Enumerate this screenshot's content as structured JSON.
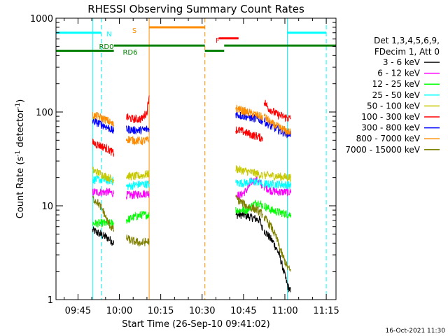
{
  "chart_data": {
    "type": "line",
    "title": "RHESSI Observing Summary Count Rates",
    "xlabel": "Start Time (26-Sep-10 09:41:02)",
    "ylabel_main": "Count Rate (s",
    "ylabel_sup1": "-1",
    "ylabel_mid": " detector",
    "ylabel_sup2": "-1",
    "ylabel_end": ")",
    "yscale": "log",
    "ylim": [
      1,
      1000
    ],
    "xlim_minutes": [
      -3.97,
      97.53
    ],
    "xticks": [
      {
        "min": 4,
        "label": "09:45"
      },
      {
        "min": 19,
        "label": "10:00"
      },
      {
        "min": 34,
        "label": "10:15"
      },
      {
        "min": 49,
        "label": "10:30"
      },
      {
        "min": 64,
        "label": "10:45"
      },
      {
        "min": 79,
        "label": "11:00"
      },
      {
        "min": 94,
        "label": "11:15"
      }
    ],
    "yticks": [
      {
        "value": 1,
        "label": "1"
      },
      {
        "value": 10,
        "label": "10"
      },
      {
        "value": 100,
        "label": "100"
      },
      {
        "value": 1000,
        "label": "1000"
      }
    ],
    "legend_header": [
      "Det 1,3,4,5,6,9,",
      "FDecim 1, Att 0"
    ],
    "series": [
      {
        "name": "3 - 6 keV",
        "color": "#000000",
        "segments": [
          [
            [
              9.3,
              5.5
            ],
            [
              12,
              5
            ],
            [
              15,
              4.5
            ],
            [
              17,
              4
            ]
          ],
          [
            [
              61.2,
              8
            ],
            [
              64,
              8
            ],
            [
              67,
              7.5
            ],
            [
              70,
              7
            ],
            [
              71,
              5.5
            ]
          ],
          [
            [
              71.5,
              5.5
            ],
            [
              75,
              4
            ],
            [
              77,
              3
            ],
            [
              79,
              1.8
            ],
            [
              80,
              1.4
            ],
            [
              81.2,
              1.2
            ]
          ]
        ]
      },
      {
        "name": "6 - 12 keV",
        "color": "#ff00ff",
        "segments": [
          [
            [
              9.3,
              14
            ],
            [
              12,
              14
            ],
            [
              15,
              14
            ],
            [
              17,
              13.5
            ]
          ],
          [
            [
              21.5,
              13
            ],
            [
              24,
              13
            ],
            [
              27,
              13.5
            ],
            [
              29.8,
              13.5
            ]
          ],
          [
            [
              61.2,
              13
            ],
            [
              63,
              13
            ],
            [
              65,
              14.5
            ],
            [
              67,
              18
            ],
            [
              69,
              19
            ],
            [
              71,
              16
            ]
          ],
          [
            [
              71.5,
              16
            ],
            [
              74,
              14.5
            ],
            [
              77,
              14
            ],
            [
              81.2,
              14
            ]
          ]
        ]
      },
      {
        "name": "12 - 25 keV",
        "color": "#00ff00",
        "segments": [
          [
            [
              9.3,
              6.5
            ],
            [
              12,
              6.5
            ],
            [
              15,
              6.5
            ],
            [
              17,
              6.5
            ]
          ],
          [
            [
              21.5,
              7
            ],
            [
              24,
              7.5
            ],
            [
              27,
              8
            ],
            [
              29.8,
              8
            ]
          ],
          [
            [
              61.2,
              9
            ],
            [
              63,
              9
            ],
            [
              65,
              9
            ],
            [
              67,
              10
            ],
            [
              69,
              11
            ],
            [
              71,
              10
            ]
          ],
          [
            [
              71.5,
              10
            ],
            [
              74,
              9
            ],
            [
              77,
              8.5
            ],
            [
              81.2,
              8
            ]
          ]
        ]
      },
      {
        "name": "25 - 50 keV",
        "color": "#00ffff",
        "segments": [
          [
            [
              9.3,
              19
            ],
            [
              12,
              19
            ],
            [
              15,
              18.5
            ],
            [
              17,
              18.5
            ]
          ],
          [
            [
              21.5,
              16
            ],
            [
              24,
              16.5
            ],
            [
              27,
              17
            ],
            [
              29.8,
              17
            ]
          ],
          [
            [
              61.2,
              17.5
            ],
            [
              64,
              17.5
            ],
            [
              67,
              18
            ],
            [
              69,
              18
            ],
            [
              71,
              17
            ]
          ],
          [
            [
              71.5,
              17
            ],
            [
              74,
              17
            ],
            [
              77,
              17
            ],
            [
              81.2,
              16.5
            ]
          ]
        ]
      },
      {
        "name": "50 - 100 keV",
        "color": "#c8c800",
        "segments": [
          [
            [
              9.3,
              24
            ],
            [
              12,
              22
            ],
            [
              15,
              20
            ],
            [
              17,
              19
            ]
          ],
          [
            [
              21.5,
              21
            ],
            [
              24,
              20.5
            ],
            [
              27,
              21
            ],
            [
              29.8,
              22
            ]
          ],
          [
            [
              61.2,
              25
            ],
            [
              63,
              24
            ],
            [
              66,
              23
            ],
            [
              69,
              22
            ],
            [
              71,
              21
            ]
          ],
          [
            [
              71.5,
              21
            ],
            [
              74,
              21
            ],
            [
              77,
              20.5
            ],
            [
              81.2,
              20
            ]
          ]
        ]
      },
      {
        "name": "100 - 300 keV",
        "color": "#ff0000",
        "segments": [
          [
            [
              9.3,
              47
            ],
            [
              12,
              44
            ],
            [
              15,
              40
            ],
            [
              17,
              36
            ]
          ],
          [
            [
              21.5,
              88
            ],
            [
              24,
              84
            ],
            [
              27,
              84
            ],
            [
              29,
              100
            ],
            [
              29.8,
              150
            ]
          ],
          [
            [
              61.2,
              65
            ],
            [
              63,
              63
            ],
            [
              65,
              60
            ],
            [
              67,
              57
            ],
            [
              69,
              55
            ],
            [
              71,
              52
            ]
          ],
          [
            [
              71.5,
              130
            ],
            [
              73,
              110
            ],
            [
              76,
              95
            ],
            [
              79,
              88
            ],
            [
              81.2,
              85
            ]
          ]
        ]
      },
      {
        "name": "300 - 800 keV",
        "color": "#0000ff",
        "segments": [
          [
            [
              9.3,
              80
            ],
            [
              12,
              75
            ],
            [
              15,
              68
            ],
            [
              17,
              62
            ]
          ],
          [
            [
              21.5,
              66
            ],
            [
              24,
              64
            ],
            [
              27,
              64
            ],
            [
              29.8,
              66
            ]
          ],
          [
            [
              61.2,
              95
            ],
            [
              63,
              92
            ],
            [
              66,
              88
            ],
            [
              69,
              84
            ],
            [
              71,
              80
            ]
          ],
          [
            [
              71.5,
              80
            ],
            [
              74,
              70
            ],
            [
              77,
              64
            ],
            [
              79,
              60
            ],
            [
              81.2,
              58
            ]
          ]
        ]
      },
      {
        "name": "800 - 7000 keV",
        "color": "#ff8c00",
        "segments": [
          [
            [
              9.3,
              92
            ],
            [
              12,
              88
            ],
            [
              15,
              80
            ],
            [
              17,
              72
            ]
          ],
          [
            [
              21.5,
              52
            ],
            [
              24,
              50
            ],
            [
              27,
              49
            ],
            [
              29.8,
              50
            ]
          ],
          [
            [
              61.2,
              110
            ],
            [
              63,
              105
            ],
            [
              66,
              98
            ],
            [
              69,
              92
            ],
            [
              71,
              88
            ]
          ],
          [
            [
              71.5,
              90
            ],
            [
              74,
              76
            ],
            [
              77,
              68
            ],
            [
              79,
              64
            ],
            [
              81.2,
              60
            ]
          ]
        ]
      },
      {
        "name": "7000 - 15000 keV",
        "color": "#808000",
        "segments": [
          [
            [
              9.3,
              12
            ],
            [
              11,
              11
            ],
            [
              13,
              9
            ],
            [
              15,
              6.5
            ],
            [
              17,
              5.5
            ]
          ],
          [
            [
              21.5,
              4.5
            ],
            [
              24,
              4.2
            ],
            [
              27,
              4
            ],
            [
              29.8,
              4.2
            ]
          ],
          [
            [
              61.2,
              12
            ],
            [
              63,
              11
            ],
            [
              65,
              10
            ],
            [
              67,
              9.5
            ],
            [
              69,
              9
            ],
            [
              71,
              8
            ]
          ],
          [
            [
              71.5,
              7.5
            ],
            [
              74,
              6
            ],
            [
              76,
              4.5
            ],
            [
              78,
              3
            ],
            [
              80,
              2.2
            ],
            [
              81.2,
              2
            ]
          ]
        ]
      }
    ],
    "flag_bars": [
      {
        "label": "N",
        "color": "#00ffff",
        "y": 700,
        "segments": [
          [
            -3.97,
            12.4
          ],
          [
            79.9,
            94.0
          ]
        ]
      },
      {
        "label": "S",
        "color": "#ff8c00",
        "y": 800,
        "segments": [
          [
            29.8,
            50.0
          ]
        ]
      },
      {
        "label": "F",
        "color": "#ff0000",
        "y": 610,
        "segments": [
          [
            55.0,
            62.2
          ]
        ]
      },
      {
        "label": "RD0",
        "color": "#008000",
        "y": 510,
        "segments": [
          [
            17.0,
            50.0
          ],
          [
            57.0,
            97.53
          ]
        ]
      },
      {
        "label": "RD6",
        "color": "#008000",
        "y": 450,
        "segments": [
          [
            -3.97,
            17.0
          ],
          [
            50.0,
            57.0
          ]
        ]
      }
    ],
    "vlines": [
      {
        "min": 9.3,
        "color": "#00ffff",
        "style": "solid"
      },
      {
        "min": 12.4,
        "color": "#00ffff",
        "style": "dashed"
      },
      {
        "min": 29.8,
        "color": "#ff8c00",
        "style": "solid"
      },
      {
        "min": 50.0,
        "color": "#ff8c00",
        "style": "dashed"
      },
      {
        "min": 79.9,
        "color": "#00ffff",
        "style": "solid"
      },
      {
        "min": 94.0,
        "color": "#00ffff",
        "style": "dashed"
      }
    ],
    "footer_date": "16-Oct-2021 11:30"
  }
}
